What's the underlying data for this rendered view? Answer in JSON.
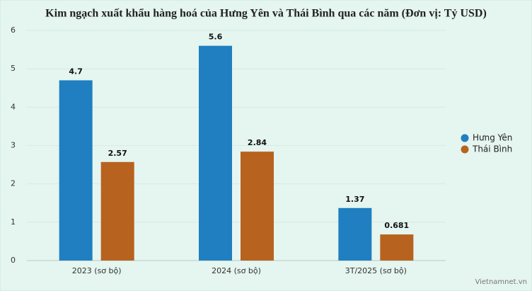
{
  "chart_data": {
    "type": "bar",
    "title": "Kim ngạch xuất khẩu hàng hoá của Hưng Yên và Thái Bình qua các năm (Đơn vị: Tỷ USD)",
    "categories": [
      "2023 (sơ bộ)",
      "2024 (sơ bộ)",
      "3T/2025 (sơ bộ)"
    ],
    "series": [
      {
        "name": "Hưng Yên",
        "color": "#1f7fc0",
        "values": [
          4.7,
          5.6,
          1.37
        ]
      },
      {
        "name": "Thái Bình",
        "color": "#b8621f",
        "values": [
          2.57,
          2.84,
          0.681
        ]
      }
    ],
    "ylim": [
      0,
      6
    ],
    "yticks": [
      0,
      1,
      2,
      3,
      4,
      5,
      6
    ],
    "grid": true,
    "legend": "right",
    "credit": "Vietnamnet.vn"
  }
}
